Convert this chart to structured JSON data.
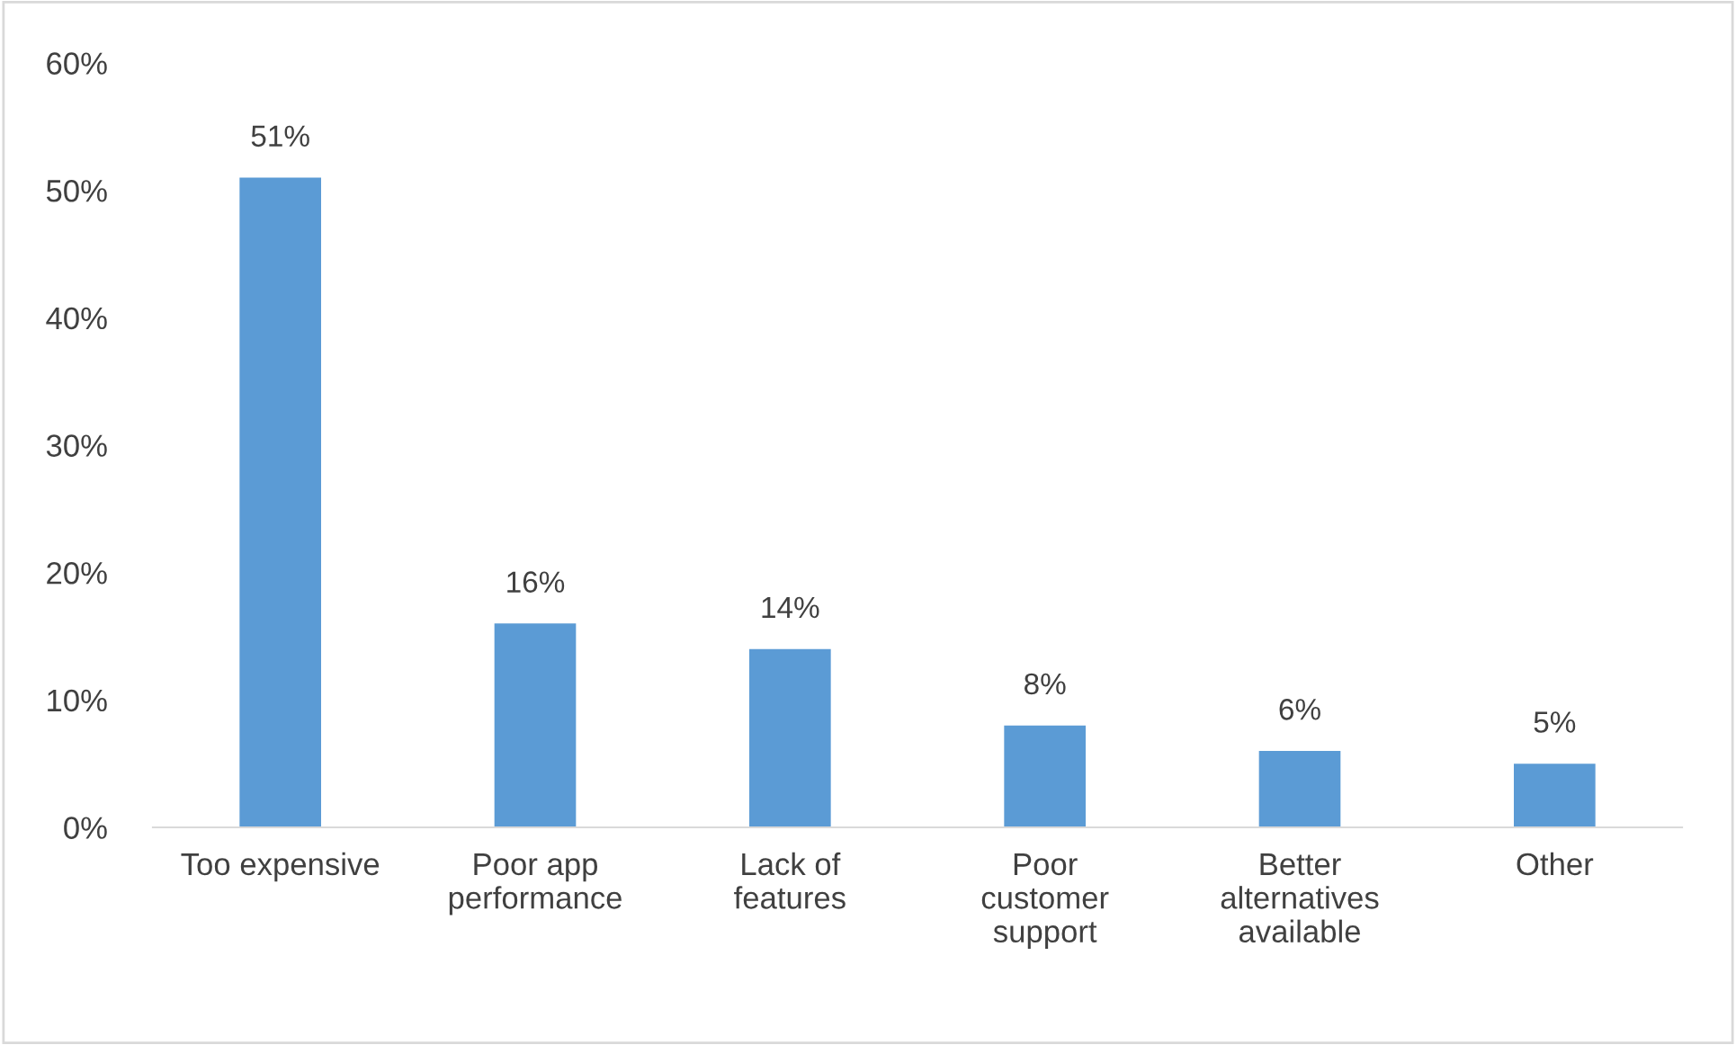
{
  "chart_data": {
    "type": "bar",
    "categories": [
      "Too expensive",
      "Poor app\nperformance",
      "Lack of\nfeatures",
      "Poor\ncustomer\nsupport",
      "Better\nalternatives\navailable",
      "Other"
    ],
    "values": [
      51,
      16,
      14,
      8,
      6,
      5
    ],
    "value_labels": [
      "51%",
      "16%",
      "14%",
      "8%",
      "6%",
      "5%"
    ],
    "color": "#5b9bd5",
    "ylim": [
      0,
      60
    ],
    "yticks": [
      {
        "value": 0,
        "label": "0%"
      },
      {
        "value": 10,
        "label": "10%"
      },
      {
        "value": 20,
        "label": "20%"
      },
      {
        "value": 30,
        "label": "30%"
      },
      {
        "value": 40,
        "label": "40%"
      },
      {
        "value": 50,
        "label": "50%"
      },
      {
        "value": 60,
        "label": "60%"
      }
    ],
    "grid": false,
    "legend": false
  }
}
